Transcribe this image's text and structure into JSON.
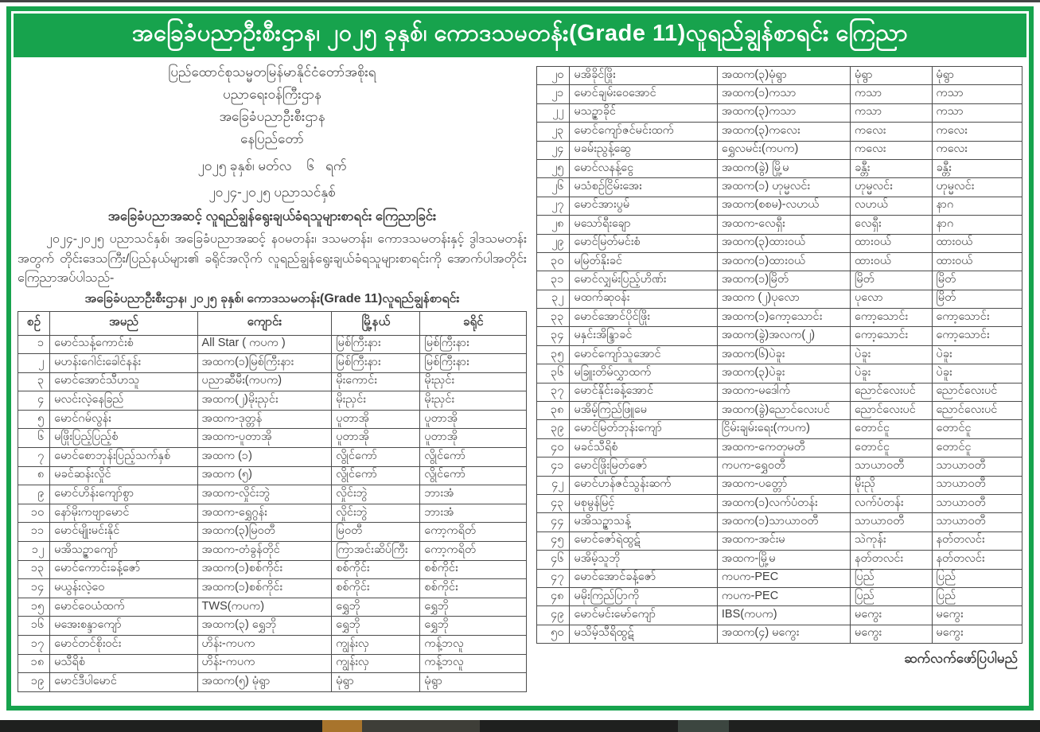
{
  "page": {
    "title_banner": "အခြေခံပညာဦးစီးဌာန၊ ၂၀၂၅ ခုနှစ်၊ ကောဒသမတန်း(Grade 11)လူရည်ချွန်စာရင်း ကြေညာ",
    "accent_green": "#17a34d",
    "text_color": "#3f3f3f"
  },
  "letterhead": {
    "lines": [
      "ပြည်ထောင်စုသမ္မတမြန်မာနိုင်ငံတော်အစိုးရ",
      "ပညာရေးဝန်ကြီးဌာန",
      "အခြေခံပညာဦးစီးဌာန",
      "နေပြည်တော်"
    ],
    "date_line": "၂၀၂၅ ခုနှစ်၊ မတ်လ    ၆   ရက်",
    "year_line": "၂၀၂၄-၂၀၂၅ ပညာသင်နှစ်",
    "announce_line": "အခြေခံပညာအဆင့် လူရည်ချွန်ရွေးချယ်ခံရသူများစာရင်း ကြေညာခြင်း"
  },
  "body_paragraph": "၂၀၂၄-၂၀၂၅ ပညာသင်နှစ်၊ အခြေခံပညာအဆင့် နဝမတန်း၊ ဒသမတန်း၊ ကောဒသမတန်းနှင့် ဒွါဒသမတန်းအတွက် တိုင်းဒေသကြီး/ပြည်နယ်များ၏ ခရိုင်အလိုက် လူရည်ချွန်ရွေးချယ်ခံရသူများစာရင်းကို အောက်ပါအတိုင်းကြေညာအပ်ပါသည်-",
  "table_title": "အခြေခံပညာဦးစီးဌာန၊ ၂၀၂၅ ခုနှစ်၊ ကောဒသမတန်း(Grade 11)လူရည်ချွန်စာရင်း",
  "table": {
    "columns": [
      "စဉ်",
      "အမည်",
      "ကျောင်း",
      "မြို့နယ်",
      "ခရိုင်"
    ],
    "rows": [
      {
        "no": "၁",
        "name": "မောင်သန့်ကောင်းစံ",
        "school": "All Star ( ကပက )",
        "township": "မြစ်ကြီးနား",
        "district": "မြစ်ကြီးနား"
      },
      {
        "no": "၂",
        "name": "မဟန်းဂေါင်းခေါင်နန်း",
        "school": "အထက(၁)မြစ်ကြီးနား",
        "township": "မြစ်ကြီးနား",
        "district": "မြစ်ကြီးနား"
      },
      {
        "no": "၃",
        "name": "မောင်အောင်သီဟသူ",
        "school": "ပညာဆီမီး(ကပက)",
        "township": "မိုးကောင်း",
        "district": "မိုးညှင်း"
      },
      {
        "no": "၄",
        "name": "မလင်းလဲ့နေခြည်",
        "school": "အထက(၂)မိုးညှင်း",
        "township": "မိုးညှင်း",
        "district": "မိုးညှင်း"
      },
      {
        "no": "၅",
        "name": "မောင်ဂမ်လွန်း",
        "school": "အထက-ဒုတ္တန်",
        "township": "ပူတာအို",
        "district": "ပူတာအို"
      },
      {
        "no": "၆",
        "name": "မဖြိုးပြည့်ပြည့်စံ",
        "school": "အထက-ပူတာအို",
        "township": "ပူတာအို",
        "district": "ပူတာအို"
      },
      {
        "no": "၇",
        "name": "မောင်စောဘုန်းပြည့်သက်နှစ်",
        "school": "အထက (၁)",
        "township": "လွိုင်ကော်",
        "district": "လွိုင်ကော်"
      },
      {
        "no": "၈",
        "name": "မခင်ဆန်းလှိုင်",
        "school": "အထက (၅)",
        "township": "လွိုင်ကော်",
        "district": "လွိုင်ကော်"
      },
      {
        "no": "၉",
        "name": "မောင်ဟိန်းကျော်စွာ",
        "school": "အထက-လှိုင်းဘွဲ",
        "township": "လှိုင်းဘွဲ",
        "district": "ဘားအံ"
      },
      {
        "no": "၁၀",
        "name": "နော်မိုးကဗျာမောင်",
        "school": "အထက-ရွှေဂွန်း",
        "township": "လှိုင်းဘွဲ",
        "district": "ဘားအံ"
      },
      {
        "no": "၁၁",
        "name": "မောင်မျိုးမင်းနိုင်",
        "school": "အထက(၃)မြဝတီ",
        "township": "မြဝတီ",
        "district": "ကော့ကရိတ်"
      },
      {
        "no": "၁၂",
        "name": "မအိသဉ္ဇာကျော်",
        "school": "အထက-တံခွန်တိုင်",
        "township": "ကြာအင်းဆိပ်ကြီး",
        "district": "ကော့ကရိတ်"
      },
      {
        "no": "၁၃",
        "name": "မောင်ကောင်းခန့်ဇော်",
        "school": "အထက(၁)စစ်ကိုင်း",
        "township": "စစ်ကိုင်း",
        "district": "စစ်ကိုင်း"
      },
      {
        "no": "၁၄",
        "name": "မယွန်းလဲ့ဝေ",
        "school": "အထက(၁)စစ်ကိုင်း",
        "township": "စစ်ကိုင်း",
        "district": "စစ်ကိုင်း"
      },
      {
        "no": "၁၅",
        "name": "မောင်ဝေယံထက်",
        "school": "TWS(ကပက)",
        "township": "ရွှေဘို",
        "district": "ရွှေဘို"
      },
      {
        "no": "၁၆",
        "name": "မအေးစန္ဒာကျော်",
        "school": "အထက(၃) ရွှေဘို",
        "township": "ရွှေဘို",
        "district": "ရွှေဘို"
      },
      {
        "no": "၁၇",
        "name": "မောင်တင်စိုးဝင်း",
        "school": "ဟိန်း-ကပက",
        "township": "ကျွန်းလှ",
        "district": "ကန့်ဘလူ"
      },
      {
        "no": "၁၈",
        "name": "မသီရိစံ",
        "school": "ဟိန်း-ကပက",
        "township": "ကျွန်းလှ",
        "district": "ကန့်ဘလူ"
      },
      {
        "no": "၁၉",
        "name": "မောင်ဒီပါမောင်",
        "school": "အထက(၅) မုံရွာ",
        "township": "မုံရွာ",
        "district": "မုံရွာ"
      },
      {
        "no": "၂၀",
        "name": "မအိခိုင်ဖြိုး",
        "school": "အထက(၃)မုံရွာ",
        "township": "မုံရွာ",
        "district": "မုံရွာ"
      },
      {
        "no": "၂၁",
        "name": "မောင်ချမ်းဝေအောင်",
        "school": "အထက(၁)ကသာ",
        "township": "ကသာ",
        "district": "ကသာ"
      },
      {
        "no": "၂၂",
        "name": "မသဉ္ဇာခိုင်",
        "school": "အထက(၃)ကသာ",
        "township": "ကသာ",
        "district": "ကသာ"
      },
      {
        "no": "၂၃",
        "name": "မောင်ကျော်ဇင်မင်းထက်",
        "school": "အထက(၃)ကလေး",
        "township": "ကလေး",
        "district": "ကလေး"
      },
      {
        "no": "၂၄",
        "name": "မခမ်းညွန့်ဆွေ",
        "school": "ရွှေလမင်း(ကပက)",
        "township": "ကလေး",
        "district": "ကလေး"
      },
      {
        "no": "၂၅",
        "name": "မောင်လနန့်ငွေ",
        "school": "အထက(ခွဲ) မြို့မ",
        "township": "ခန္တီး",
        "district": "ခန္တီး"
      },
      {
        "no": "၂၆",
        "name": "မသံစဉ်ငြိမ်းအေး",
        "school": "အထက(၁) ဟုမ္မလင်း",
        "township": "ဟုမ္မလင်း",
        "district": "ဟုမ္မလင်း"
      },
      {
        "no": "၂၇",
        "name": "မောင်အားပွမ်",
        "school": "အထက(စစမ)-လဟယ်",
        "township": "လဟယ်",
        "district": "နာဂ"
      },
      {
        "no": "၂၈",
        "name": "မသော်ရီးချော",
        "school": "အထက-လေရှီး",
        "township": "လေရှီး",
        "district": "နာဂ"
      },
      {
        "no": "၂၉",
        "name": "မောင်မြတ်မင်းစံ",
        "school": "အထက(၃)ထားဝယ်",
        "township": "ထားဝယ်",
        "district": "ထားဝယ်"
      },
      {
        "no": "၃၀",
        "name": "မမြတ်နိုးခင်",
        "school": "အထက(၁)ထားဝယ်",
        "township": "ထားဝယ်",
        "district": "ထားဝယ်"
      },
      {
        "no": "၃၁",
        "name": "မောင်လျှမ်းပြည့်ဟိဏ်း",
        "school": "အထက(၁)မြိတ်",
        "township": "မြိတ်",
        "district": "မြိတ်"
      },
      {
        "no": "၃၂",
        "name": "မထက်ဆုဝန်း",
        "school": "အထက (၂)ပုလော",
        "township": "ပုလော",
        "district": "မြိတ်"
      },
      {
        "no": "၃၃",
        "name": "မောင်အောင်ပိုင်ဖြိုး",
        "school": "အထက(၁)ကော့သောင်း",
        "township": "ကော့သောင်း",
        "district": "ကော့သောင်း"
      },
      {
        "no": "၃၄",
        "name": "မနှင်းအိန္ဒြာခင်",
        "school": "အထက(ခွဲ)အလက(၂)",
        "township": "ကော့သောင်း",
        "district": "ကော့သောင်း"
      },
      {
        "no": "၃၅",
        "name": "မောင်ကျော်သူအောင်",
        "school": "အထက(၆)ပဲခူး",
        "township": "ပဲခူး",
        "district": "ပဲခူး"
      },
      {
        "no": "၃၆",
        "name": "မခြူးတိမ်လွှာထက်",
        "school": "အထက(၃)ပဲခူး",
        "township": "ပဲခူး",
        "district": "ပဲခူး"
      },
      {
        "no": "၃၇",
        "name": "မောင်နိုင်းခန့်အောင်",
        "school": "အထက-မဒေါက်",
        "township": "ညောင်လေးပင်",
        "district": "ညောင်လေးပင်"
      },
      {
        "no": "၃၈",
        "name": "မအိမ့်ကြည်ဖြူမေ",
        "school": "အထက(ခွဲ)ညောင်လေးပင်",
        "township": "ညောင်လေးပင်",
        "district": "ညောင်လေးပင်"
      },
      {
        "no": "၃၉",
        "name": "မောင်မြတ်ဘုန်းကျော်",
        "school": "ငြိမ်းချမ်းရေး(ကပက)",
        "township": "တောင်ငူ",
        "district": "တောင်ငူ"
      },
      {
        "no": "၄၀",
        "name": "မခင်သီရိစံ",
        "school": "အထက-ကေတုမတီ",
        "township": "တောင်ငူ",
        "district": "တောင်ငူ"
      },
      {
        "no": "၄၁",
        "name": "မောင်ဖြိုးမြတ်ဇော်",
        "school": "ကပက-ရွှေဝတီ",
        "township": "သာယာဝတီ",
        "district": "သာယာဝတီ"
      },
      {
        "no": "၄၂",
        "name": "မောင်ဟန်ဇင်သွန်းဆက်",
        "school": "အထက-ပတ္တော်",
        "township": "မိုးညို",
        "district": "သာယာဝတီ"
      },
      {
        "no": "၄၃",
        "name": "မစုမွန်မြင့်",
        "school": "အထက(၁)လက်ပံတန်း",
        "township": "လက်ပံတန်း",
        "district": "သာယာဝတီ"
      },
      {
        "no": "၄၄",
        "name": "မအိသဉ္ဇာသန့်",
        "school": "အထက(၁)သာယာဝတီ",
        "township": "သာယာဝတီ",
        "district": "သာယာဝတီ"
      },
      {
        "no": "၄၅",
        "name": "မောင်ဇော်ရဲထွဋ်",
        "school": "အထက-အင်းမ",
        "township": "သဲကုန်း",
        "district": "နတ်တလင်း"
      },
      {
        "no": "၄၆",
        "name": "မအိမ့်သူဘို",
        "school": "အထက-မြို့မ",
        "township": "နတ်တလင်း",
        "district": "နတ်တလင်း"
      },
      {
        "no": "၄၇",
        "name": "မောင်အောင်ခန့်ဇော်",
        "school": "ကပက-PEC",
        "township": "ပြည်",
        "district": "ပြည်"
      },
      {
        "no": "၄၈",
        "name": "မမိုးကြည်ပြာကို",
        "school": "ကပက-PEC",
        "township": "ပြည်",
        "district": "ပြည်"
      },
      {
        "no": "၄၉",
        "name": "မောင်မင်းမော်ကျော်",
        "school": "IBS(ကပက)",
        "township": "မကွေး",
        "district": "မကွေး"
      },
      {
        "no": "၅၀",
        "name": "မသိမ့်သီရိထွဋ်",
        "school": "အထက(၄) မကွေး",
        "township": "မကွေး",
        "district": "မကွေး"
      }
    ],
    "left_row_count": 19
  },
  "footer": {
    "continuation": "ဆက်လက်ဖော်ပြပါမည်"
  }
}
